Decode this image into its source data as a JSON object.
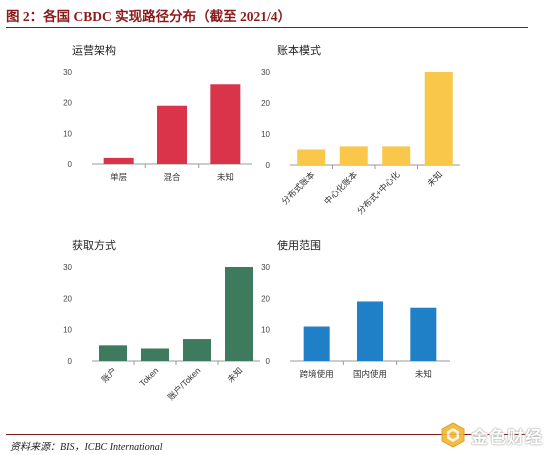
{
  "page": {
    "title": "图 2：各国 CBDC 实现路径分布（截至 2021/4）",
    "source": "资料来源：BIS，ICBC International",
    "watermark_text": "金色财经"
  },
  "chart_data": [
    {
      "type": "bar",
      "title": "运营架构",
      "categories": [
        "单层",
        "混合",
        "未知"
      ],
      "values": [
        2,
        19,
        26
      ],
      "ylim": [
        0,
        30
      ],
      "yticks": [
        0,
        10,
        20,
        30
      ],
      "color": "#d9344a",
      "xlabel": "",
      "ylabel": "",
      "rotate_labels": false
    },
    {
      "type": "bar",
      "title": "账本模式",
      "categories": [
        "分布式账本",
        "中心化账本",
        "分布式+中心化",
        "未知"
      ],
      "values": [
        5,
        6,
        6,
        30
      ],
      "ylim": [
        0,
        30
      ],
      "yticks": [
        0,
        10,
        20,
        30
      ],
      "color": "#f9c74a",
      "xlabel": "",
      "ylabel": "",
      "rotate_labels": true
    },
    {
      "type": "bar",
      "title": "获取方式",
      "categories": [
        "账户",
        "Token",
        "账户/Token",
        "未知"
      ],
      "values": [
        5,
        4,
        7,
        30
      ],
      "ylim": [
        0,
        30
      ],
      "yticks": [
        0,
        10,
        20,
        30
      ],
      "color": "#3d7a5e",
      "xlabel": "",
      "ylabel": "",
      "rotate_labels": true
    },
    {
      "type": "bar",
      "title": "使用范围",
      "categories": [
        "跨境使用",
        "国内使用",
        "未知"
      ],
      "values": [
        11,
        19,
        17
      ],
      "ylim": [
        0,
        30
      ],
      "yticks": [
        0,
        10,
        20,
        30
      ],
      "color": "#1f7fc7",
      "xlabel": "",
      "ylabel": "",
      "rotate_labels": false
    }
  ]
}
